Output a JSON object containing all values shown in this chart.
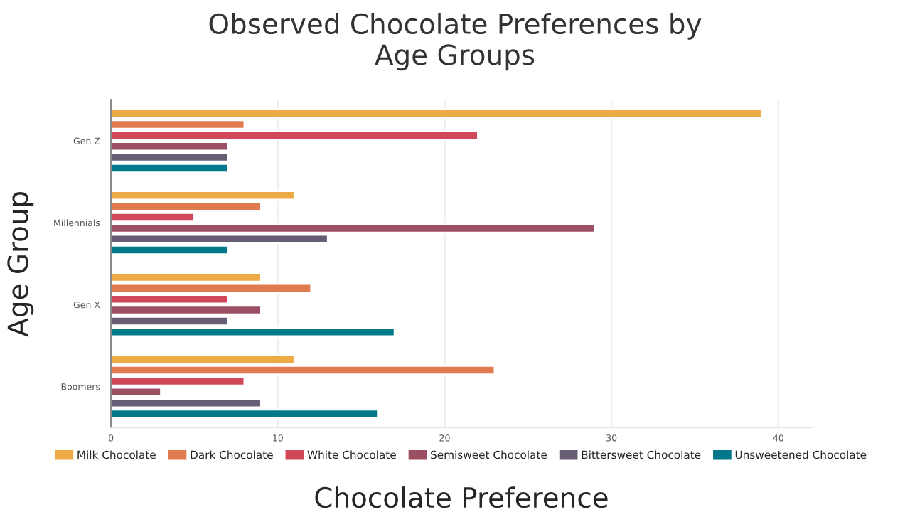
{
  "chart_data": {
    "type": "bar",
    "orientation": "horizontal",
    "title": "Observed Chocolate Preferences by\nAge Groups",
    "xlabel": "Chocolate Preference",
    "ylabel": "Age Group",
    "categories": [
      "Gen Z",
      "Millennials",
      "Gen X",
      "Boomers"
    ],
    "series": [
      {
        "name": "Milk Chocolate",
        "color": "#ecab45",
        "values": [
          39,
          11,
          9,
          11
        ]
      },
      {
        "name": "Dark Chocolate",
        "color": "#e07b50",
        "values": [
          8,
          9,
          12,
          23
        ]
      },
      {
        "name": "White Chocolate",
        "color": "#d1485a",
        "values": [
          22,
          5,
          7,
          8
        ]
      },
      {
        "name": "Semisweet Chocolate",
        "color": "#9b4f63",
        "values": [
          7,
          29,
          9,
          3
        ]
      },
      {
        "name": "Bittersweet Chocolate",
        "color": "#675d75",
        "values": [
          7,
          13,
          7,
          9
        ]
      },
      {
        "name": "Unsweetened Chocolate",
        "color": "#02788a",
        "values": [
          7,
          7,
          17,
          16
        ]
      }
    ],
    "xlim": [
      0,
      42
    ],
    "xticks": [
      0,
      10,
      20,
      30,
      40
    ],
    "grid": "x",
    "legend": "bottom"
  }
}
